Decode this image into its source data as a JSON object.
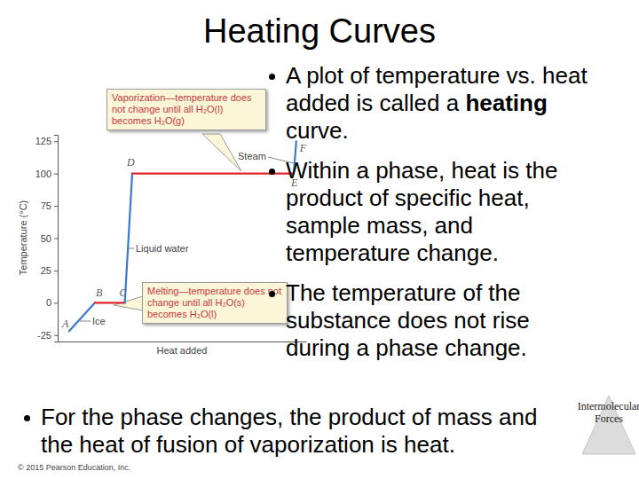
{
  "slide": {
    "title": "Heating Curves",
    "bullets": [
      [
        {
          "text": "A plot of temperature vs. heat added is called a "
        },
        {
          "text": "heating",
          "bold": true
        },
        {
          "text": " curve."
        }
      ],
      [
        {
          "text": "Within a phase, heat is the product of specific heat, sample mass, and temperature change."
        }
      ],
      [
        {
          "text": "The temperature of the substance does not rise during a phase change."
        }
      ]
    ],
    "bottom_bullet": "For the phase changes, the product of mass and the heat of fusion of vaporization is heat.",
    "badge": [
      "Intermolecular",
      "Forces"
    ],
    "footer": "© 2015 Pearson Education, Inc."
  },
  "chart_data": {
    "type": "line",
    "y_label": "Temperature (°C)",
    "x_label": "Heat added",
    "x": [
      4.6,
      15,
      27,
      30,
      95,
      96
    ],
    "values": [
      -22,
      0,
      0,
      100,
      100,
      125
    ],
    "point_labels": [
      "A",
      "B",
      "C",
      "D",
      "E",
      "F"
    ],
    "colors": [
      "#3a78d4",
      "#e0242c",
      "#3a78d4",
      "#e0242c",
      "#3a78d4"
    ],
    "xlim": [
      0,
      100
    ],
    "ylim": [
      -30,
      130
    ],
    "yticks": [
      -25,
      0,
      25,
      50,
      75,
      100,
      125
    ],
    "tick_labels": "y",
    "annotations": [
      "Ice",
      "Liquid water",
      "Steam",
      "Vaporization—temperature does not change until all H₂O(l) becomes H₂O(g)",
      "Melting—temperature does not change until all H₂O(s) becomes H₂O(l)"
    ]
  }
}
